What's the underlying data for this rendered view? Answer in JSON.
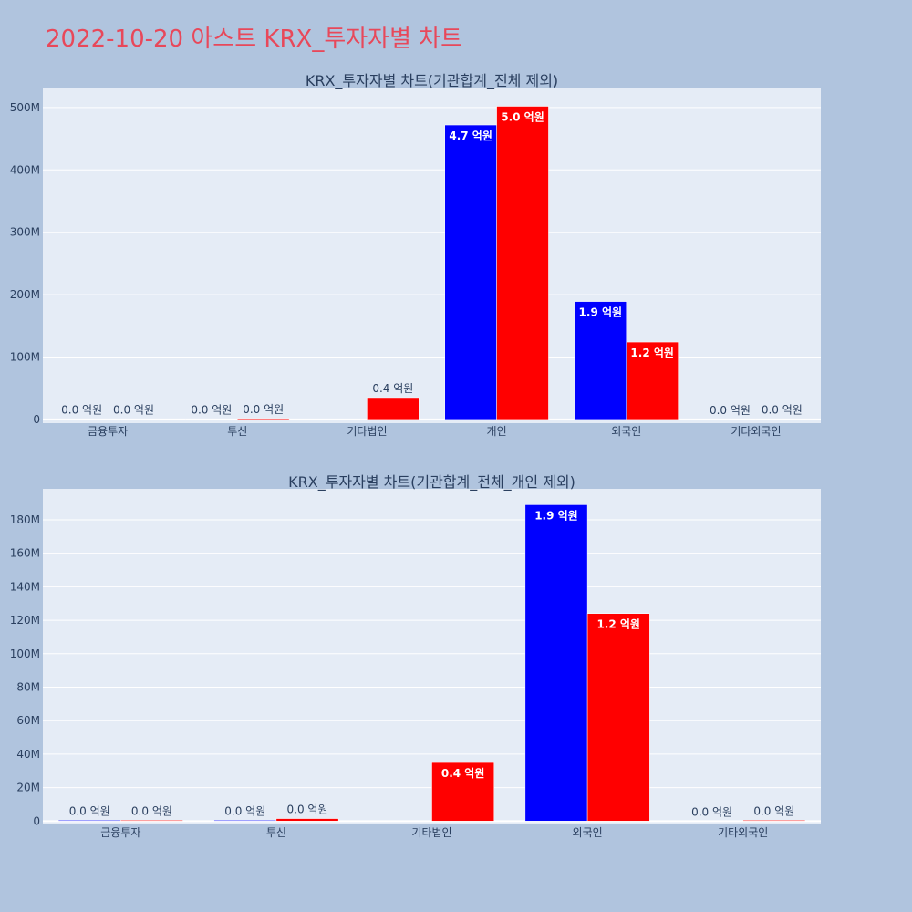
{
  "title": "2022-10-20 아스트 KRX_투자자별 차트",
  "colors": {
    "title": "#e8485a",
    "background": "#b0c4de",
    "plot_bg": "#e5ecf6",
    "buy": "#0000ff",
    "sell": "#ff0000"
  },
  "chart_data": [
    {
      "type": "bar",
      "title": "KRX_투자자별 차트(기관합계_전체 제외)",
      "categories": [
        "금융투자",
        "투신",
        "기타법인",
        "개인",
        "외국인",
        "기타외국인"
      ],
      "series": [
        {
          "color": "#0000ff",
          "values": [
            500000,
            500000,
            0,
            472000000,
            189000000,
            0
          ],
          "labels": [
            "0.0 억원",
            "0.0 억원",
            "",
            "4.7 억원",
            "1.9 억원",
            "0.0 억원"
          ]
        },
        {
          "color": "#ff0000",
          "values": [
            500000,
            1500000,
            35000000,
            502000000,
            124000000,
            500000
          ],
          "labels": [
            "0.0 억원",
            "0.0 억원",
            "0.4 억원",
            "5.0 억원",
            "1.2 억원",
            "0.0 억원"
          ]
        }
      ],
      "yticks": [
        0,
        100000000,
        200000000,
        300000000,
        400000000,
        500000000
      ],
      "ytick_labels": [
        "0",
        "100M",
        "200M",
        "300M",
        "400M",
        "500M"
      ],
      "ylim": [
        -6000000,
        532000000
      ],
      "grid": true
    },
    {
      "type": "bar",
      "title": "KRX_투자자별 차트(기관합계_전체_개인 제외)",
      "categories": [
        "금융투자",
        "투신",
        "기타법인",
        "외국인",
        "기타외국인"
      ],
      "series": [
        {
          "color": "#0000ff",
          "values": [
            500000,
            500000,
            0,
            189000000,
            0
          ],
          "labels": [
            "0.0 억원",
            "0.0 억원",
            "",
            "1.9 억원",
            "0.0 억원"
          ]
        },
        {
          "color": "#ff0000",
          "values": [
            500000,
            1500000,
            35000000,
            124000000,
            500000
          ],
          "labels": [
            "0.0 억원",
            "0.0 억원",
            "0.4 억원",
            "1.2 억원",
            "0.0 억원"
          ]
        }
      ],
      "yticks": [
        0,
        20000000,
        40000000,
        60000000,
        80000000,
        100000000,
        120000000,
        140000000,
        160000000,
        180000000
      ],
      "ytick_labels": [
        "0",
        "20M",
        "40M",
        "60M",
        "80M",
        "100M",
        "120M",
        "140M",
        "160M",
        "180M"
      ],
      "ylim": [
        -2000000,
        198500000
      ],
      "grid": true
    }
  ]
}
